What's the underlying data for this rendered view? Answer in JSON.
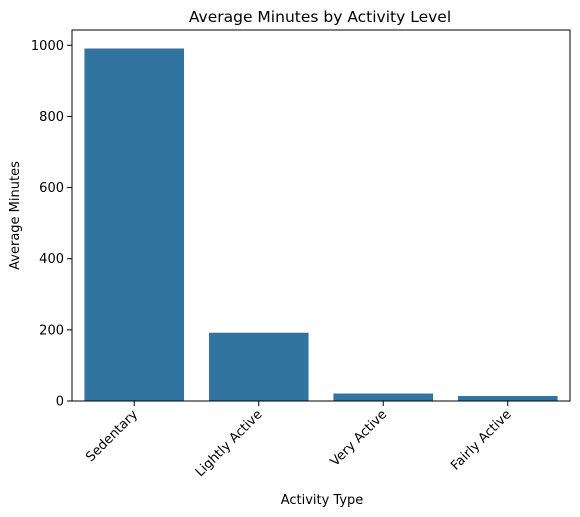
{
  "chart_data": {
    "type": "bar",
    "title": "Average Minutes by Activity Level",
    "xlabel": "Activity Type",
    "ylabel": "Average Minutes",
    "categories": [
      "Sedentary",
      "Lightly Active",
      "Very Active",
      "Fairly Active"
    ],
    "values": [
      991,
      192,
      21,
      14
    ],
    "ylim": [
      0,
      1043
    ],
    "yticks": [
      0,
      200,
      400,
      600,
      800,
      1000
    ],
    "bar_color": "#3274a1",
    "grid": false,
    "legend": "none"
  }
}
